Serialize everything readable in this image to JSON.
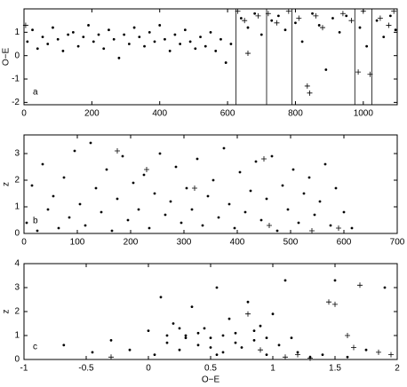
{
  "chart_data": [
    {
      "type": "scatter",
      "panel_label": "a",
      "y_label": "O−E",
      "color": "#000",
      "xlim": [
        0,
        1100
      ],
      "xticks": [
        0,
        200,
        400,
        600,
        800,
        1000
      ],
      "ylim": [
        -2.1,
        2
      ],
      "yticks": [
        -2,
        -1,
        0,
        1
      ],
      "vlines": [
        625,
        715,
        790,
        975,
        1025
      ],
      "series": [
        {
          "marker": "dot",
          "x": [
            10,
            25,
            40,
            55,
            70,
            85,
            100,
            115,
            130,
            145,
            160,
            175,
            190,
            205,
            220,
            235,
            250,
            265,
            280,
            295,
            310,
            325,
            340,
            355,
            370,
            385,
            400,
            415,
            430,
            445,
            460,
            475,
            490,
            505,
            520,
            535,
            550,
            565,
            580,
            595,
            610,
            640,
            660,
            680,
            700,
            730,
            750,
            770,
            800,
            820,
            850,
            870,
            890,
            910,
            930,
            950,
            990,
            1010,
            1040,
            1060,
            1080,
            1095
          ],
          "y": [
            0.6,
            1.1,
            0.3,
            0.8,
            0.5,
            1.2,
            0.7,
            0.2,
            0.9,
            1.0,
            0.4,
            0.8,
            1.3,
            0.6,
            0.9,
            0.3,
            1.1,
            0.7,
            -0.1,
            0.9,
            0.5,
            1.2,
            0.8,
            0.4,
            1.0,
            0.6,
            1.3,
            0.7,
            0.2,
            0.9,
            0.5,
            1.1,
            0.6,
            0.3,
            0.8,
            0.4,
            1.0,
            0.2,
            0.7,
            -0.3,
            0.5,
            1.6,
            1.2,
            1.8,
            0.9,
            1.5,
            1.7,
            1.1,
            1.4,
            0.6,
            1.8,
            1.3,
            -0.6,
            1.6,
            1.0,
            1.7,
            1.2,
            0.4,
            1.5,
            0.8,
            1.7,
            1.1
          ]
        },
        {
          "marker": "plus",
          "x": [
            5,
            630,
            650,
            690,
            720,
            745,
            780,
            810,
            835,
            842,
            860,
            880,
            940,
            965,
            985,
            1000,
            1020,
            1050,
            1075,
            1090,
            660
          ],
          "y": [
            1.3,
            1.9,
            1.5,
            1.7,
            1.8,
            1.4,
            1.9,
            1.6,
            -1.3,
            -1.6,
            1.7,
            1.2,
            1.8,
            1.5,
            -0.7,
            1.9,
            -0.8,
            1.6,
            1.3,
            1.9,
            0.1
          ]
        }
      ]
    },
    {
      "type": "scatter",
      "panel_label": "b",
      "y_label": "z",
      "color": "#000",
      "xlim": [
        0,
        700
      ],
      "xticks": [
        0,
        100,
        200,
        300,
        400,
        500,
        600,
        700
      ],
      "ylim": [
        0,
        3.7
      ],
      "yticks": [
        0,
        1,
        2,
        3
      ],
      "series": [
        {
          "marker": "dot",
          "x": [
            5,
            15,
            25,
            35,
            45,
            55,
            65,
            75,
            85,
            95,
            105,
            115,
            125,
            135,
            145,
            155,
            165,
            175,
            185,
            195,
            205,
            215,
            225,
            235,
            245,
            255,
            265,
            275,
            285,
            295,
            305,
            315,
            325,
            335,
            345,
            355,
            365,
            375,
            385,
            395,
            405,
            415,
            425,
            435,
            445,
            455,
            465,
            475,
            485,
            495,
            505,
            515,
            525,
            535,
            545,
            555,
            565,
            575,
            585,
            600,
            615
          ],
          "y": [
            0.4,
            1.8,
            0.1,
            2.6,
            0.9,
            1.4,
            0.2,
            2.1,
            0.6,
            3.1,
            1.1,
            0.3,
            3.4,
            1.7,
            0.8,
            2.4,
            0.1,
            1.3,
            2.9,
            0.5,
            1.9,
            0.9,
            2.2,
            0.2,
            1.5,
            3.0,
            0.7,
            1.2,
            2.5,
            0.4,
            1.7,
            0.9,
            2.8,
            0.3,
            1.4,
            2.0,
            0.6,
            3.2,
            1.1,
            0.2,
            2.3,
            0.8,
            1.6,
            2.7,
            0.5,
            1.3,
            2.9,
            0.1,
            1.8,
            0.9,
            2.4,
            0.4,
            1.5,
            2.1,
            0.7,
            1.2,
            2.6,
            0.3,
            1.7,
            0.8,
            0.2
          ]
        },
        {
          "marker": "plus",
          "x": [
            175,
            230,
            320,
            450,
            460,
            540,
            590
          ],
          "y": [
            3.1,
            2.4,
            1.7,
            2.8,
            0.3,
            0.1,
            0.2
          ]
        }
      ]
    },
    {
      "type": "scatter",
      "panel_label": "c",
      "x_label": "O−E",
      "y_label": "z",
      "color": "#000",
      "xlim": [
        -1,
        2
      ],
      "xticks": [
        -1,
        -0.5,
        0,
        0.5,
        1,
        1.5,
        2
      ],
      "ylim": [
        0,
        4
      ],
      "yticks": [
        0,
        1,
        2,
        3,
        4
      ],
      "series": [
        {
          "marker": "dot",
          "x": [
            -0.68,
            -0.45,
            -0.3,
            -0.15,
            0,
            0.05,
            0.1,
            0.15,
            0.2,
            0.25,
            0.3,
            0.35,
            0.4,
            0.45,
            0.5,
            0.55,
            0.6,
            0.65,
            0.7,
            0.75,
            0.8,
            0.85,
            0.9,
            0.95,
            1.0,
            1.05,
            1.1,
            1.15,
            1.2,
            1.3,
            1.4,
            1.5,
            1.6,
            1.75,
            1.9,
            0.3,
            0.5,
            0.6,
            0.4,
            0.7,
            0.25,
            0.55,
            0.85,
            0.15,
            0.95
          ],
          "y": [
            0.6,
            0.3,
            0.8,
            0.4,
            1.2,
            0.2,
            2.6,
            0.7,
            1.5,
            0.4,
            1.0,
            2.2,
            0.6,
            1.3,
            0.9,
            3.0,
            0.3,
            1.7,
            1.1,
            0.5,
            2.4,
            0.8,
            1.4,
            0.2,
            1.9,
            0.6,
            3.3,
            0.9,
            0.3,
            0.1,
            0.2,
            3.3,
            0.1,
            0.4,
            3.0,
            0.9,
            0.5,
            1.0,
            1.1,
            0.7,
            1.3,
            0.2,
            1.2,
            1.0,
            0.9
          ]
        },
        {
          "marker": "plus",
          "x": [
            -0.3,
            0.8,
            0.9,
            1.1,
            1.2,
            1.45,
            1.5,
            1.6,
            1.65,
            1.7,
            1.85,
            1.95,
            1.3
          ],
          "y": [
            0.1,
            1.9,
            0.4,
            0.1,
            0.2,
            2.4,
            2.3,
            1.0,
            0.5,
            3.1,
            0.3,
            0.2,
            0.05
          ]
        }
      ]
    }
  ]
}
